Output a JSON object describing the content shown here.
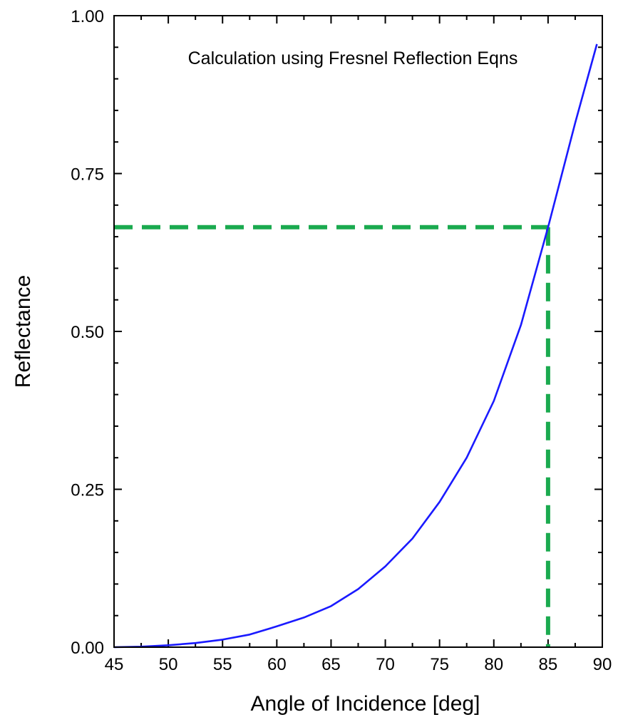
{
  "chart_data": {
    "type": "line",
    "title": "",
    "annotation": "Calculation using Fresnel Reflection Eqns",
    "xlabel": "Angle of Incidence [deg]",
    "ylabel": "Reflectance",
    "xlim": [
      45,
      90
    ],
    "ylim": [
      0,
      1
    ],
    "x_ticks": [
      45,
      50,
      55,
      60,
      65,
      70,
      75,
      80,
      85,
      90
    ],
    "x_tick_labels": [
      "45",
      "50",
      "55",
      "60",
      "65",
      "70",
      "75",
      "80",
      "85",
      "90"
    ],
    "y_ticks": [
      0,
      0.25,
      0.5,
      0.75,
      1.0
    ],
    "y_tick_labels": [
      "0.00",
      "0.25",
      "0.50",
      "0.75",
      "1.00"
    ],
    "grid": false,
    "series": [
      {
        "color": "#1a1aff",
        "x": [
          45,
          47.5,
          50,
          52.5,
          55,
          57.5,
          60,
          62.5,
          65,
          67.5,
          70,
          72.5,
          75,
          77.5,
          80,
          82.5,
          85,
          87.5,
          89.5
        ],
        "y": [
          0.0,
          0.0008,
          0.003,
          0.0065,
          0.012,
          0.02,
          0.033,
          0.047,
          0.065,
          0.092,
          0.128,
          0.172,
          0.23,
          0.3,
          0.39,
          0.51,
          0.665,
          0.83,
          0.955
        ]
      }
    ],
    "reference_lines": {
      "color": "#1aaa4f",
      "style": "dashed",
      "x": 85,
      "y": 0.665
    }
  }
}
